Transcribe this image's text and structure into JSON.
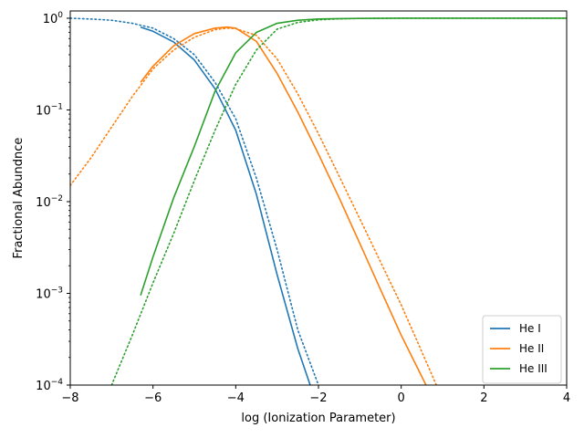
{
  "chart_data": {
    "type": "line",
    "title": "",
    "xlabel": "log (Ionization Parameter)",
    "ylabel": "Fractional Abundnce",
    "xlim": [
      -8,
      4
    ],
    "ylim": [
      0.0001,
      1.2
    ],
    "yscale": "log",
    "grid": false,
    "legend_position": "bottom-right",
    "x_ticks": [
      -8,
      -6,
      -4,
      -2,
      0,
      2,
      4
    ],
    "x_tick_labels": [
      "−8",
      "−6",
      "−4",
      "−2",
      "0",
      "2",
      "4"
    ],
    "y_ticks": [
      0.0001,
      0.001,
      0.01,
      0.1,
      1
    ],
    "y_tick_labels": [
      {
        "base": "10",
        "exp": "−4"
      },
      {
        "base": "10",
        "exp": "−3"
      },
      {
        "base": "10",
        "exp": "−2"
      },
      {
        "base": "10",
        "exp": "−1"
      },
      {
        "base": "10",
        "exp": "0"
      }
    ],
    "series": [
      {
        "name": "He I",
        "color": "#1f77b4",
        "style": "solid",
        "x": [
          -6.3,
          -6.0,
          -5.5,
          -5.0,
          -4.5,
          -4.0,
          -3.5,
          -3.0,
          -2.5,
          -2.2
        ],
        "y": [
          0.8,
          0.72,
          0.55,
          0.35,
          0.17,
          0.06,
          0.012,
          0.0016,
          0.00025,
          0.0001
        ]
      },
      {
        "name": "He II",
        "color": "#ff7f0e",
        "style": "solid",
        "x": [
          -6.3,
          -6.0,
          -5.5,
          -5.0,
          -4.5,
          -4.2,
          -4.0,
          -3.5,
          -3.0,
          -2.5,
          -2.0,
          -1.5,
          -1.0,
          -0.5,
          0.0,
          0.6
        ],
        "y": [
          0.2,
          0.3,
          0.5,
          0.68,
          0.78,
          0.8,
          0.78,
          0.56,
          0.25,
          0.095,
          0.033,
          0.011,
          0.0035,
          0.0011,
          0.00035,
          0.0001
        ]
      },
      {
        "name": "He III",
        "color": "#2ca02c",
        "style": "solid",
        "x": [
          -6.3,
          -6.0,
          -5.5,
          -5.0,
          -4.5,
          -4.0,
          -3.5,
          -3.0,
          -2.5,
          -2.0,
          -1.5,
          -1.0,
          0.0,
          1.0,
          2.0,
          3.0,
          4.0
        ],
        "y": [
          0.00095,
          0.0025,
          0.011,
          0.04,
          0.16,
          0.42,
          0.7,
          0.88,
          0.95,
          0.98,
          0.99,
          0.995,
          1.0,
          1.0,
          1.0,
          1.0,
          1.0
        ]
      },
      {
        "name": "",
        "color": "#1f77b4",
        "style": "dotted",
        "x": [
          -8.0,
          -7.5,
          -7.0,
          -6.5,
          -6.0,
          -5.5,
          -5.0,
          -4.5,
          -4.0,
          -3.5,
          -3.0,
          -2.5,
          -2.0
        ],
        "y": [
          1.0,
          0.98,
          0.95,
          0.88,
          0.78,
          0.6,
          0.4,
          0.2,
          0.08,
          0.018,
          0.003,
          0.0004,
          0.0001
        ]
      },
      {
        "name": "",
        "color": "#ff7f0e",
        "style": "dotted",
        "x": [
          -8.0,
          -7.5,
          -7.0,
          -6.5,
          -6.0,
          -5.5,
          -5.0,
          -4.5,
          -4.2,
          -4.0,
          -3.5,
          -3.0,
          -2.5,
          -2.0,
          -1.5,
          -1.0,
          -0.5,
          0.0,
          0.5,
          0.85
        ],
        "y": [
          0.015,
          0.03,
          0.065,
          0.14,
          0.28,
          0.45,
          0.62,
          0.75,
          0.78,
          0.77,
          0.65,
          0.36,
          0.15,
          0.055,
          0.019,
          0.0065,
          0.0022,
          0.00075,
          0.00023,
          0.0001
        ]
      },
      {
        "name": "",
        "color": "#2ca02c",
        "style": "dotted",
        "x": [
          -7.0,
          -6.5,
          -6.0,
          -5.5,
          -5.0,
          -4.5,
          -4.0,
          -3.5,
          -3.0,
          -2.5,
          -2.0,
          -1.5,
          -1.0,
          0.0,
          2.0,
          4.0
        ],
        "y": [
          0.0001,
          0.00035,
          0.0013,
          0.0045,
          0.017,
          0.06,
          0.19,
          0.45,
          0.76,
          0.9,
          0.96,
          0.985,
          0.995,
          1.0,
          1.0,
          1.0
        ]
      }
    ],
    "legend": [
      {
        "label": "He I",
        "color": "#1f77b4"
      },
      {
        "label": "He II",
        "color": "#ff7f0e"
      },
      {
        "label": "He III",
        "color": "#2ca02c"
      }
    ]
  }
}
